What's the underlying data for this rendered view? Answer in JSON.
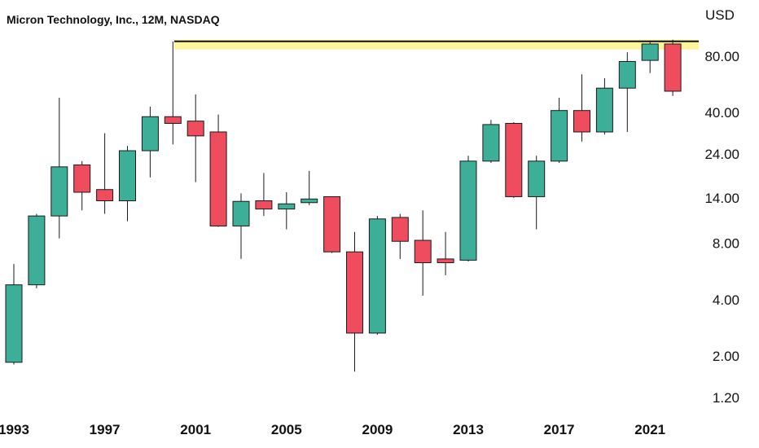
{
  "chart_data": {
    "type": "candlestick",
    "title": "Micron Technology, Inc., 12M, NASDAQ",
    "currency": "USD",
    "y_scale": "log",
    "y_ticks": [
      80,
      40,
      24,
      14,
      8,
      4,
      2,
      1.2
    ],
    "y_tick_labels": [
      "80.00",
      "40.00",
      "24.00",
      "14.00",
      "8.00",
      "4.00",
      "2.00",
      "1.20"
    ],
    "x_tick_labels": [
      "1993",
      "1997",
      "2001",
      "2005",
      "2009",
      "2013",
      "2017",
      "2021"
    ],
    "resistance_level": 96,
    "up_color": "#3daf98",
    "down_color": "#ef4c5e",
    "resistance_color": "#fff59d",
    "candles": [
      {
        "year": 1993,
        "open": 1.85,
        "high": 6.2,
        "low": 1.8,
        "close": 4.8
      },
      {
        "year": 1994,
        "open": 4.8,
        "high": 11.5,
        "low": 4.6,
        "close": 11.2
      },
      {
        "year": 1995,
        "open": 11.2,
        "high": 48,
        "low": 8.5,
        "close": 20.5
      },
      {
        "year": 1996,
        "open": 21,
        "high": 22,
        "low": 12,
        "close": 15
      },
      {
        "year": 1997,
        "open": 15.5,
        "high": 31,
        "low": 11.5,
        "close": 13.5
      },
      {
        "year": 1998,
        "open": 13.5,
        "high": 26.5,
        "low": 10.5,
        "close": 25
      },
      {
        "year": 1999,
        "open": 25,
        "high": 43,
        "low": 18,
        "close": 38
      },
      {
        "year": 2000,
        "open": 38,
        "high": 96,
        "low": 27,
        "close": 35
      },
      {
        "year": 2001,
        "open": 36,
        "high": 50,
        "low": 17,
        "close": 30
      },
      {
        "year": 2002,
        "open": 31.5,
        "high": 39,
        "low": 9.8,
        "close": 9.9
      },
      {
        "year": 2003,
        "open": 9.9,
        "high": 14.8,
        "low": 6.6,
        "close": 13.4
      },
      {
        "year": 2004,
        "open": 13.5,
        "high": 19,
        "low": 11.2,
        "close": 12.2
      },
      {
        "year": 2005,
        "open": 12.2,
        "high": 15,
        "low": 9.5,
        "close": 13
      },
      {
        "year": 2006,
        "open": 13.2,
        "high": 19.5,
        "low": 12.8,
        "close": 13.8
      },
      {
        "year": 2007,
        "open": 14.2,
        "high": 14.2,
        "low": 7.1,
        "close": 7.2
      },
      {
        "year": 2008,
        "open": 7.2,
        "high": 9.2,
        "low": 1.65,
        "close": 2.65
      },
      {
        "year": 2009,
        "open": 2.65,
        "high": 11.2,
        "low": 2.6,
        "close": 10.8
      },
      {
        "year": 2010,
        "open": 11,
        "high": 11.5,
        "low": 6.6,
        "close": 8.2
      },
      {
        "year": 2011,
        "open": 8.3,
        "high": 12,
        "low": 4.2,
        "close": 6.3
      },
      {
        "year": 2012,
        "open": 6.6,
        "high": 9.2,
        "low": 5.4,
        "close": 6.3
      },
      {
        "year": 2013,
        "open": 6.5,
        "high": 23.5,
        "low": 6.4,
        "close": 22
      },
      {
        "year": 2014,
        "open": 22,
        "high": 36.5,
        "low": 21.5,
        "close": 34.5
      },
      {
        "year": 2015,
        "open": 35,
        "high": 35.5,
        "low": 14,
        "close": 14.2
      },
      {
        "year": 2016,
        "open": 14.2,
        "high": 23.5,
        "low": 9.5,
        "close": 22
      },
      {
        "year": 2017,
        "open": 22,
        "high": 48,
        "low": 21.5,
        "close": 41
      },
      {
        "year": 2018,
        "open": 41,
        "high": 64,
        "low": 28,
        "close": 31.5
      },
      {
        "year": 2019,
        "open": 31.5,
        "high": 61,
        "low": 30.5,
        "close": 54
      },
      {
        "year": 2020,
        "open": 54,
        "high": 84,
        "low": 31.5,
        "close": 75
      },
      {
        "year": 2021,
        "open": 76,
        "high": 97,
        "low": 65,
        "close": 93
      },
      {
        "year": 2022,
        "open": 93,
        "high": 98,
        "low": 49,
        "close": 52
      }
    ]
  }
}
